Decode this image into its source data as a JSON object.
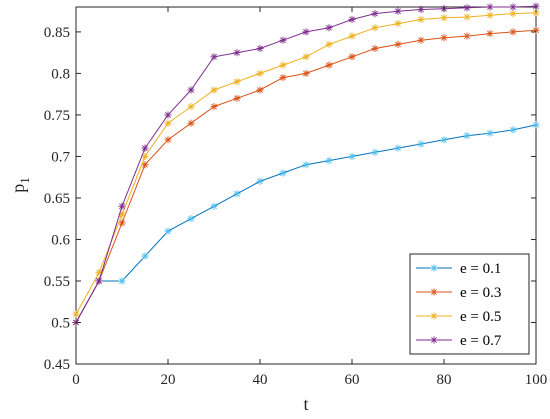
{
  "chart_data": {
    "type": "line",
    "title": "",
    "xlabel": "t",
    "ylabel_main": "p",
    "ylabel_sub": "1",
    "xlim": [
      0,
      100
    ],
    "ylim": [
      0.45,
      0.88
    ],
    "xticks": [
      0,
      20,
      40,
      60,
      80,
      100
    ],
    "xtick_labels": [
      "0",
      "20",
      "40",
      "60",
      "80",
      "100"
    ],
    "yticks": [
      0.45,
      0.5,
      0.55,
      0.6,
      0.65,
      0.7,
      0.75,
      0.8,
      0.85
    ],
    "ytick_labels": [
      "0.45",
      "0.5",
      "0.55",
      "0.6",
      "0.65",
      "0.7",
      "0.75",
      "0.8",
      "0.85"
    ],
    "grid": false,
    "marker": "asterisk",
    "legend_position": "bottom-right",
    "x": [
      0,
      5,
      10,
      15,
      20,
      25,
      30,
      35,
      40,
      45,
      50,
      55,
      60,
      65,
      70,
      75,
      80,
      85,
      90,
      95,
      100
    ],
    "series": [
      {
        "name": "e = 0.1",
        "color": "#0072BD",
        "marker_color": "#4DBEEE",
        "values": [
          0.5,
          0.55,
          0.55,
          0.58,
          0.61,
          0.625,
          0.64,
          0.655,
          0.67,
          0.68,
          0.69,
          0.695,
          0.7,
          0.705,
          0.71,
          0.715,
          0.72,
          0.725,
          0.728,
          0.732,
          0.738
        ]
      },
      {
        "name": "e = 0.3",
        "color": "#D95319",
        "marker_color": "#D95319",
        "values": [
          0.5,
          0.55,
          0.62,
          0.69,
          0.72,
          0.74,
          0.76,
          0.77,
          0.78,
          0.795,
          0.8,
          0.81,
          0.82,
          0.83,
          0.835,
          0.84,
          0.843,
          0.845,
          0.848,
          0.85,
          0.852
        ]
      },
      {
        "name": "e = 0.5",
        "color": "#EDB120",
        "marker_color": "#EDB120",
        "values": [
          0.51,
          0.56,
          0.63,
          0.7,
          0.74,
          0.76,
          0.78,
          0.79,
          0.8,
          0.81,
          0.82,
          0.835,
          0.845,
          0.855,
          0.86,
          0.865,
          0.867,
          0.868,
          0.87,
          0.872,
          0.873
        ]
      },
      {
        "name": "e = 0.7",
        "color": "#7E2F8E",
        "marker_color": "#7E2F8E",
        "values": [
          0.5,
          0.55,
          0.64,
          0.71,
          0.75,
          0.78,
          0.82,
          0.825,
          0.83,
          0.84,
          0.85,
          0.855,
          0.865,
          0.872,
          0.875,
          0.877,
          0.878,
          0.879,
          0.88,
          0.88,
          0.881
        ]
      }
    ]
  }
}
